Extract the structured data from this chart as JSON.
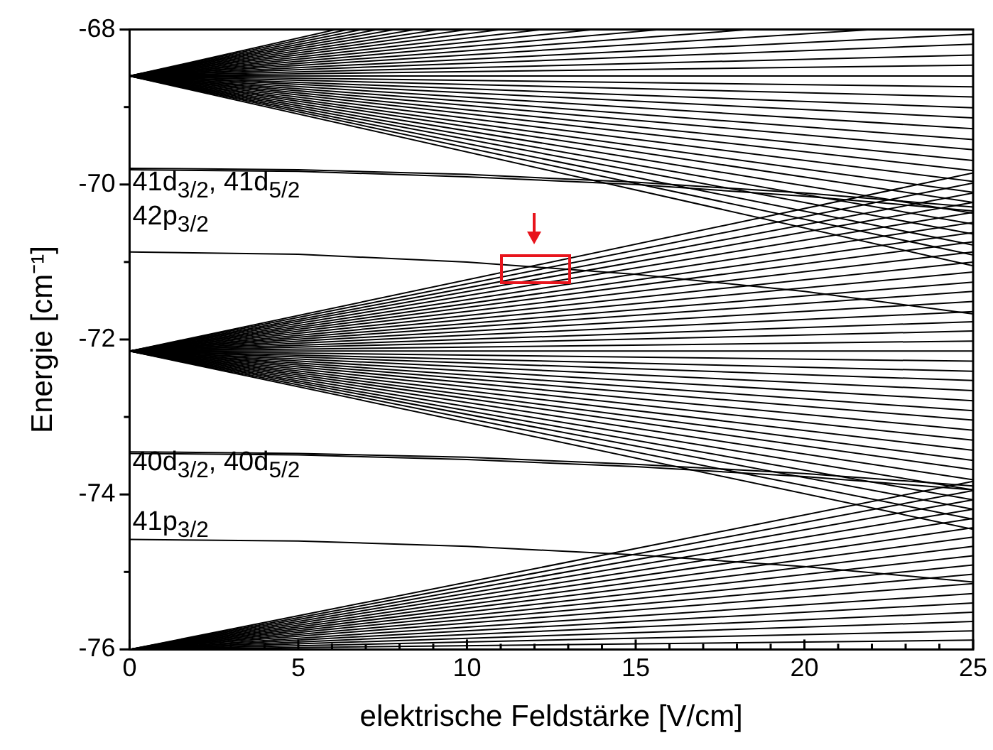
{
  "chart_data": {
    "type": "line",
    "xlabel": "elektrische Feldstärke [V/cm]",
    "ylabel": "Energie [cm⁻¹]",
    "xlim": [
      0,
      25
    ],
    "ylim": [
      -76,
      -68
    ],
    "xticks": [
      0,
      {
        "value": 1,
        "label": null
      },
      {
        "value": 2,
        "label": null
      },
      {
        "value": 3,
        "label": null
      },
      {
        "value": 4,
        "label": null
      },
      5,
      {
        "value": 6,
        "label": null
      },
      {
        "value": 7,
        "label": null
      },
      {
        "value": 8,
        "label": null
      },
      {
        "value": 9,
        "label": null
      },
      10,
      {
        "value": 11,
        "label": null
      },
      {
        "value": 12,
        "label": null
      },
      {
        "value": 13,
        "label": null
      },
      {
        "value": 14,
        "label": null
      },
      15,
      {
        "value": 16,
        "label": null
      },
      {
        "value": 17,
        "label": null
      },
      {
        "value": 18,
        "label": null
      },
      {
        "value": 19,
        "label": null
      },
      20,
      {
        "value": 21,
        "label": null
      },
      {
        "value": 22,
        "label": null
      },
      {
        "value": 23,
        "label": null
      },
      {
        "value": 24,
        "label": null
      },
      25
    ],
    "yticks": [
      -76,
      {
        "value": -75,
        "label": null
      },
      -74,
      {
        "value": -73,
        "label": null
      },
      -72,
      {
        "value": -71,
        "label": null
      },
      -70,
      {
        "value": -69,
        "label": null
      },
      -68
    ],
    "grid": false,
    "legend": false,
    "marker": "none",
    "line_style": "solid",
    "annotations": [
      "41d$_{3/2}$, 41d$_{5/2}$",
      "42p$_{3/2}$",
      "40d$_{3/2}$, 40d$_{5/2}$",
      "41p$_{3/2}$"
    ],
    "series": [
      {
        "color": "#000000",
        "x": [
          0,
          25
        ],
        "values": [
          -68.6,
          -68.6
        ]
      },
      {
        "color": "#000000",
        "x": [
          0,
          25
        ],
        "values": [
          -68.6,
          -68.46
        ]
      },
      {
        "color": "#000000",
        "x": [
          0,
          25
        ],
        "values": [
          -68.6,
          -68.33
        ]
      },
      {
        "color": "#000000",
        "x": [
          0,
          25
        ],
        "values": [
          -68.6,
          -68.19
        ]
      },
      {
        "color": "#000000",
        "x": [
          0,
          25
        ],
        "values": [
          -68.6,
          -68.06
        ]
      },
      {
        "color": "#000000",
        "x": [
          0,
          22.04
        ],
        "values": [
          -68.6,
          -68
        ]
      },
      {
        "color": "#000000",
        "x": [
          0,
          18.37
        ],
        "values": [
          -68.6,
          -68
        ]
      },
      {
        "color": "#000000",
        "x": [
          0,
          15.74
        ],
        "values": [
          -68.6,
          -68
        ]
      },
      {
        "color": "#000000",
        "x": [
          0,
          13.77
        ],
        "values": [
          -68.6,
          -68
        ]
      },
      {
        "color": "#000000",
        "x": [
          0,
          12.24
        ],
        "values": [
          -68.6,
          -68
        ]
      },
      {
        "color": "#000000",
        "x": [
          0,
          11.02
        ],
        "values": [
          -68.6,
          -68
        ]
      },
      {
        "color": "#000000",
        "x": [
          0,
          10.02
        ],
        "values": [
          -68.6,
          -68
        ]
      },
      {
        "color": "#000000",
        "x": [
          0,
          9.18
        ],
        "values": [
          -68.6,
          -68
        ]
      },
      {
        "color": "#000000",
        "x": [
          0,
          8.48
        ],
        "values": [
          -68.6,
          -68
        ]
      },
      {
        "color": "#000000",
        "x": [
          0,
          7.87
        ],
        "values": [
          -68.6,
          -68
        ]
      },
      {
        "color": "#000000",
        "x": [
          0,
          7.35
        ],
        "values": [
          -68.6,
          -68
        ]
      },
      {
        "color": "#000000",
        "x": [
          0,
          6.89
        ],
        "values": [
          -68.6,
          -68
        ]
      },
      {
        "color": "#000000",
        "x": [
          0,
          6.48
        ],
        "values": [
          -68.6,
          -68
        ]
      },
      {
        "color": "#000000",
        "x": [
          0,
          6.12
        ],
        "values": [
          -68.6,
          -68
        ]
      },
      {
        "color": "#000000",
        "x": [
          0,
          25
        ],
        "values": [
          -68.6,
          -68.74
        ]
      },
      {
        "color": "#000000",
        "x": [
          0,
          25
        ],
        "values": [
          -68.6,
          -68.87
        ]
      },
      {
        "color": "#000000",
        "x": [
          0,
          25
        ],
        "values": [
          -68.6,
          -69.01
        ]
      },
      {
        "color": "#000000",
        "x": [
          0,
          25
        ],
        "values": [
          -68.6,
          -69.14
        ]
      },
      {
        "color": "#000000",
        "x": [
          0,
          25
        ],
        "values": [
          -68.6,
          -69.28
        ]
      },
      {
        "color": "#000000",
        "x": [
          0,
          25
        ],
        "values": [
          -68.6,
          -69.42
        ]
      },
      {
        "color": "#000000",
        "x": [
          0,
          25
        ],
        "values": [
          -68.6,
          -69.55
        ]
      },
      {
        "color": "#000000",
        "x": [
          0,
          25
        ],
        "values": [
          -68.6,
          -69.69
        ]
      },
      {
        "color": "#000000",
        "x": [
          0,
          25
        ],
        "values": [
          -68.6,
          -69.82
        ]
      },
      {
        "color": "#000000",
        "x": [
          0,
          25
        ],
        "values": [
          -68.6,
          -69.96
        ]
      },
      {
        "color": "#000000",
        "x": [
          0,
          25
        ],
        "values": [
          -68.6,
          -70.1
        ]
      },
      {
        "color": "#000000",
        "x": [
          0,
          25
        ],
        "values": [
          -68.6,
          -70.23
        ]
      },
      {
        "color": "#000000",
        "x": [
          0,
          25
        ],
        "values": [
          -68.6,
          -70.37
        ]
      },
      {
        "color": "#000000",
        "x": [
          0,
          25
        ],
        "values": [
          -68.6,
          -70.51
        ]
      },
      {
        "color": "#000000",
        "x": [
          0,
          25
        ],
        "values": [
          -68.6,
          -70.64
        ]
      },
      {
        "color": "#000000",
        "x": [
          0,
          25
        ],
        "values": [
          -68.6,
          -70.78
        ]
      },
      {
        "color": "#000000",
        "x": [
          0,
          25
        ],
        "values": [
          -68.6,
          -70.91
        ]
      },
      {
        "color": "#000000",
        "x": [
          0,
          25
        ],
        "values": [
          -68.6,
          -71.05
        ]
      },
      {
        "color": "#000000",
        "x": [
          0,
          25
        ],
        "values": [
          -72.15,
          -72.15
        ]
      },
      {
        "color": "#000000",
        "x": [
          0,
          25
        ],
        "values": [
          -72.15,
          -72.02
        ]
      },
      {
        "color": "#000000",
        "x": [
          0,
          25
        ],
        "values": [
          -72.15,
          -71.89
        ]
      },
      {
        "color": "#000000",
        "x": [
          0,
          25
        ],
        "values": [
          -72.15,
          -71.77
        ]
      },
      {
        "color": "#000000",
        "x": [
          0,
          25
        ],
        "values": [
          -72.15,
          -71.64
        ]
      },
      {
        "color": "#000000",
        "x": [
          0,
          25
        ],
        "values": [
          -72.15,
          -71.51
        ]
      },
      {
        "color": "#000000",
        "x": [
          0,
          25
        ],
        "values": [
          -72.15,
          -71.38
        ]
      },
      {
        "color": "#000000",
        "x": [
          0,
          25
        ],
        "values": [
          -72.15,
          -71.26
        ]
      },
      {
        "color": "#000000",
        "x": [
          0,
          25
        ],
        "values": [
          -72.15,
          -71.13
        ]
      },
      {
        "color": "#000000",
        "x": [
          0,
          25
        ],
        "values": [
          -72.15,
          -71.0
        ]
      },
      {
        "color": "#000000",
        "x": [
          0,
          25
        ],
        "values": [
          -72.15,
          -70.87
        ]
      },
      {
        "color": "#000000",
        "x": [
          0,
          25
        ],
        "values": [
          -72.15,
          -70.74
        ]
      },
      {
        "color": "#000000",
        "x": [
          0,
          25
        ],
        "values": [
          -72.15,
          -70.62
        ]
      },
      {
        "color": "#000000",
        "x": [
          0,
          25
        ],
        "values": [
          -72.15,
          -70.49
        ]
      },
      {
        "color": "#000000",
        "x": [
          0,
          25
        ],
        "values": [
          -72.15,
          -70.36
        ]
      },
      {
        "color": "#000000",
        "x": [
          0,
          25
        ],
        "values": [
          -72.15,
          -70.23
        ]
      },
      {
        "color": "#000000",
        "x": [
          0,
          25
        ],
        "values": [
          -72.15,
          -70.11
        ]
      },
      {
        "color": "#000000",
        "x": [
          0,
          25
        ],
        "values": [
          -72.15,
          -69.98
        ]
      },
      {
        "color": "#000000",
        "x": [
          0,
          25
        ],
        "values": [
          -72.15,
          -69.85
        ]
      },
      {
        "color": "#000000",
        "x": [
          0,
          25
        ],
        "values": [
          -72.15,
          -72.28
        ]
      },
      {
        "color": "#000000",
        "x": [
          0,
          25
        ],
        "values": [
          -72.15,
          -72.41
        ]
      },
      {
        "color": "#000000",
        "x": [
          0,
          25
        ],
        "values": [
          -72.15,
          -72.53
        ]
      },
      {
        "color": "#000000",
        "x": [
          0,
          25
        ],
        "values": [
          -72.15,
          -72.66
        ]
      },
      {
        "color": "#000000",
        "x": [
          0,
          25
        ],
        "values": [
          -72.15,
          -72.79
        ]
      },
      {
        "color": "#000000",
        "x": [
          0,
          25
        ],
        "values": [
          -72.15,
          -72.92
        ]
      },
      {
        "color": "#000000",
        "x": [
          0,
          25
        ],
        "values": [
          -72.15,
          -73.04
        ]
      },
      {
        "color": "#000000",
        "x": [
          0,
          25
        ],
        "values": [
          -72.15,
          -73.17
        ]
      },
      {
        "color": "#000000",
        "x": [
          0,
          25
        ],
        "values": [
          -72.15,
          -73.3
        ]
      },
      {
        "color": "#000000",
        "x": [
          0,
          25
        ],
        "values": [
          -72.15,
          -73.43
        ]
      },
      {
        "color": "#000000",
        "x": [
          0,
          25
        ],
        "values": [
          -72.15,
          -73.56
        ]
      },
      {
        "color": "#000000",
        "x": [
          0,
          25
        ],
        "values": [
          -72.15,
          -73.68
        ]
      },
      {
        "color": "#000000",
        "x": [
          0,
          25
        ],
        "values": [
          -72.15,
          -73.81
        ]
      },
      {
        "color": "#000000",
        "x": [
          0,
          25
        ],
        "values": [
          -72.15,
          -73.94
        ]
      },
      {
        "color": "#000000",
        "x": [
          0,
          25
        ],
        "values": [
          -72.15,
          -74.07
        ]
      },
      {
        "color": "#000000",
        "x": [
          0,
          25
        ],
        "values": [
          -72.15,
          -74.19
        ]
      },
      {
        "color": "#000000",
        "x": [
          0,
          25
        ],
        "values": [
          -72.15,
          -74.32
        ]
      },
      {
        "color": "#000000",
        "x": [
          0,
          25
        ],
        "values": [
          -72.15,
          -74.45
        ]
      },
      {
        "color": "#000000",
        "x": [
          0,
          25
        ],
        "values": [
          -76,
          -75.88
        ]
      },
      {
        "color": "#000000",
        "x": [
          0,
          25
        ],
        "values": [
          -76,
          -75.76
        ]
      },
      {
        "color": "#000000",
        "x": [
          0,
          25
        ],
        "values": [
          -76,
          -75.64
        ]
      },
      {
        "color": "#000000",
        "x": [
          0,
          25
        ],
        "values": [
          -76,
          -75.52
        ]
      },
      {
        "color": "#000000",
        "x": [
          0,
          25
        ],
        "values": [
          -76,
          -75.4
        ]
      },
      {
        "color": "#000000",
        "x": [
          0,
          25
        ],
        "values": [
          -76,
          -75.28
        ]
      },
      {
        "color": "#000000",
        "x": [
          0,
          25
        ],
        "values": [
          -76,
          -75.15
        ]
      },
      {
        "color": "#000000",
        "x": [
          0,
          25
        ],
        "values": [
          -76,
          -75.03
        ]
      },
      {
        "color": "#000000",
        "x": [
          0,
          25
        ],
        "values": [
          -76,
          -74.91
        ]
      },
      {
        "color": "#000000",
        "x": [
          0,
          25
        ],
        "values": [
          -76,
          -74.79
        ]
      },
      {
        "color": "#000000",
        "x": [
          0,
          25
        ],
        "values": [
          -76,
          -74.67
        ]
      },
      {
        "color": "#000000",
        "x": [
          0,
          25
        ],
        "values": [
          -76,
          -74.55
        ]
      },
      {
        "color": "#000000",
        "x": [
          0,
          25
        ],
        "values": [
          -76,
          -74.43
        ]
      },
      {
        "color": "#000000",
        "x": [
          0,
          25
        ],
        "values": [
          -76,
          -74.31
        ]
      },
      {
        "color": "#000000",
        "x": [
          0,
          25
        ],
        "values": [
          -76,
          -74.19
        ]
      },
      {
        "color": "#000000",
        "x": [
          0,
          25
        ],
        "values": [
          -76,
          -74.07
        ]
      },
      {
        "color": "#000000",
        "x": [
          0,
          25
        ],
        "values": [
          -76,
          -73.95
        ]
      },
      {
        "color": "#000000",
        "x": [
          0,
          25
        ],
        "values": [
          -76,
          -73.83
        ]
      },
      {
        "color": "#000000",
        "x": [
          0,
          5,
          10,
          15,
          20,
          25
        ],
        "values": [
          -69.79,
          -69.81,
          -69.87,
          -69.97,
          -70.11,
          -70.29
        ]
      },
      {
        "color": "#000000",
        "x": [
          0,
          5,
          10,
          15,
          20,
          25
        ],
        "values": [
          -69.81,
          -69.83,
          -69.9,
          -70.0,
          -70.15,
          -70.34
        ]
      },
      {
        "color": "#000000",
        "x": [
          0,
          5,
          10,
          15,
          20,
          25
        ],
        "values": [
          -70.87,
          -70.9,
          -71.0,
          -71.16,
          -71.38,
          -71.67
        ]
      },
      {
        "color": "#000000",
        "x": [
          0,
          5,
          10,
          15,
          20,
          25
        ],
        "values": [
          -73.45,
          -73.47,
          -73.52,
          -73.61,
          -73.73,
          -73.89
        ]
      },
      {
        "color": "#000000",
        "x": [
          0,
          5,
          10,
          15,
          20,
          25
        ],
        "values": [
          -73.47,
          -73.49,
          -73.55,
          -73.64,
          -73.77,
          -73.94
        ]
      },
      {
        "color": "#000000",
        "x": [
          0,
          5,
          10,
          15,
          20,
          25
        ],
        "values": [
          -74.58,
          -74.6,
          -74.67,
          -74.78,
          -74.93,
          -75.13
        ]
      }
    ]
  }
}
